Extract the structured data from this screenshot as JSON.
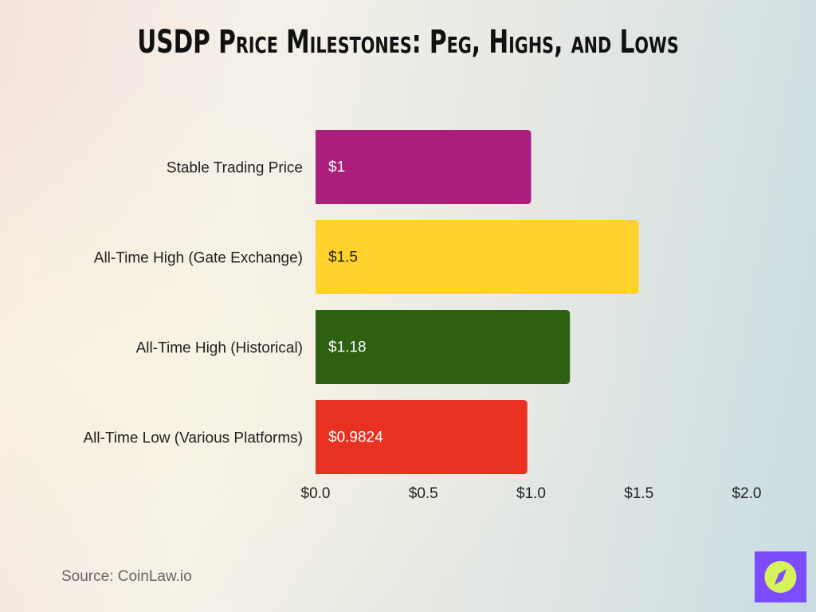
{
  "chart_data": {
    "type": "bar",
    "orientation": "horizontal",
    "title": "USDP Price Milestones: Peg, Highs, and Lows",
    "categories": [
      "Stable Trading Price",
      "All-Time High (Gate Exchange)",
      "All-Time High (Historical)",
      "All-Time Low (Various Platforms)"
    ],
    "values": [
      1,
      1.5,
      1.18,
      0.9824
    ],
    "data_labels": [
      "$1",
      "$1.5",
      "$1.18",
      "$0.9824"
    ],
    "colors": [
      "#aa1e7c",
      "#ffd22e",
      "#2e6012",
      "#e93122"
    ],
    "label_colors": [
      "#ffffff",
      "#222222",
      "#ffffff",
      "#ffffff"
    ],
    "xlim": [
      0,
      2.0
    ],
    "xticks": [
      0,
      0.5,
      1.0,
      1.5,
      2.0
    ],
    "xtick_labels": [
      "$0.0",
      "$0.5",
      "$1.0",
      "$1.5",
      "$2.0"
    ],
    "grid": false,
    "xlabel": "",
    "ylabel": ""
  },
  "source": "Source: CoinLaw.io",
  "logo": {
    "icon": "compass-icon",
    "bg": "#7c4dff",
    "fg": "#d8f25a"
  }
}
